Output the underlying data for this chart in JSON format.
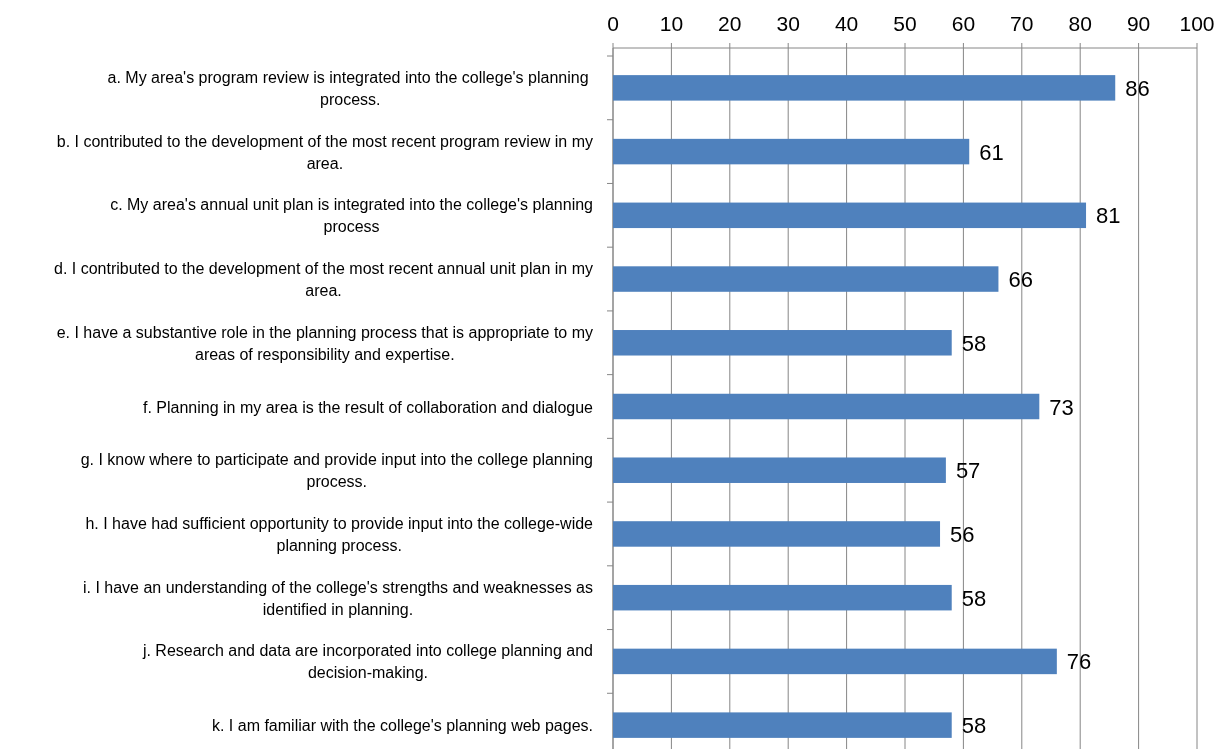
{
  "chart_data": {
    "type": "bar",
    "orientation": "horizontal",
    "categories": [
      "a. My area's program review is integrated into the college's planning  process.",
      "b. I contributed to the development of the most recent program review in my area.",
      "c. My area's annual unit plan is integrated into the college's planning process",
      "d. I contributed to the development of the most recent annual unit plan in my area.",
      "e. I have a substantive role in the planning process that is appropriate to my areas of responsibility and expertise.",
      "f. Planning in my area is the result of collaboration and dialogue",
      "g. I know where to participate and provide input into the college planning process.",
      "h. I have had sufficient opportunity to provide input into the college-wide planning process.",
      "i. I have an understanding of the college's strengths and weaknesses as identified in planning.",
      "j. Research and data are incorporated into college planning and decision-making.",
      "k. I am familiar with the college's planning web pages."
    ],
    "values": [
      86,
      61,
      81,
      66,
      58,
      73,
      57,
      56,
      58,
      76,
      58
    ],
    "color": "#4f81bd",
    "xlim": [
      0,
      100
    ],
    "xticks": [
      0,
      10,
      20,
      30,
      40,
      50,
      60,
      70,
      80,
      90,
      100
    ],
    "grid": "x",
    "data_labels": true
  }
}
